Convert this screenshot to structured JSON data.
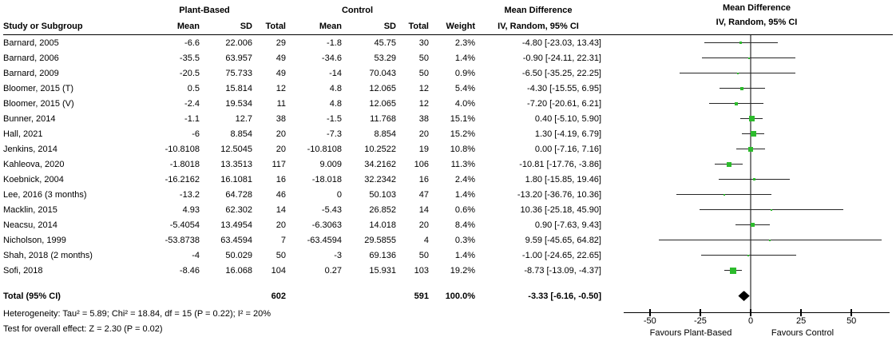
{
  "chart_data": {
    "type": "forest",
    "title_columns": {
      "study": "Study or Subgroup",
      "group1": "Plant-Based",
      "group2": "Control",
      "mean": "Mean",
      "sd": "SD",
      "total": "Total",
      "weight": "Weight",
      "effect_line1": "Mean Difference",
      "effect_line2": "IV, Random, 95% CI"
    },
    "studies": [
      {
        "name": "Barnard, 2005",
        "pb_mean": "-6.6",
        "pb_sd": "22.006",
        "pb_total": "29",
        "c_mean": "-1.8",
        "c_sd": "45.75",
        "c_total": "30",
        "weight": "2.3%",
        "ci": "-4.80 [-23.03, 13.43]",
        "md": -4.8,
        "lo": -23.03,
        "hi": 13.43
      },
      {
        "name": "Barnard, 2006",
        "pb_mean": "-35.5",
        "pb_sd": "63.957",
        "pb_total": "49",
        "c_mean": "-34.6",
        "c_sd": "53.29",
        "c_total": "50",
        "weight": "1.4%",
        "ci": "-0.90 [-24.11, 22.31]",
        "md": -0.9,
        "lo": -24.11,
        "hi": 22.31
      },
      {
        "name": "Barnard, 2009",
        "pb_mean": "-20.5",
        "pb_sd": "75.733",
        "pb_total": "49",
        "c_mean": "-14",
        "c_sd": "70.043",
        "c_total": "50",
        "weight": "0.9%",
        "ci": "-6.50 [-35.25, 22.25]",
        "md": -6.5,
        "lo": -35.25,
        "hi": 22.25
      },
      {
        "name": "Bloomer, 2015 (T)",
        "pb_mean": "0.5",
        "pb_sd": "15.814",
        "pb_total": "12",
        "c_mean": "4.8",
        "c_sd": "12.065",
        "c_total": "12",
        "weight": "5.4%",
        "ci": "-4.30 [-15.55, 6.95]",
        "md": -4.3,
        "lo": -15.55,
        "hi": 6.95
      },
      {
        "name": "Bloomer, 2015 (V)",
        "pb_mean": "-2.4",
        "pb_sd": "19.534",
        "pb_total": "11",
        "c_mean": "4.8",
        "c_sd": "12.065",
        "c_total": "12",
        "weight": "4.0%",
        "ci": "-7.20 [-20.61, 6.21]",
        "md": -7.2,
        "lo": -20.61,
        "hi": 6.21
      },
      {
        "name": "Bunner, 2014",
        "pb_mean": "-1.1",
        "pb_sd": "12.7",
        "pb_total": "38",
        "c_mean": "-1.5",
        "c_sd": "11.768",
        "c_total": "38",
        "weight": "15.1%",
        "ci": "0.40 [-5.10, 5.90]",
        "md": 0.4,
        "lo": -5.1,
        "hi": 5.9
      },
      {
        "name": "Hall, 2021",
        "pb_mean": "-6",
        "pb_sd": "8.854",
        "pb_total": "20",
        "c_mean": "-7.3",
        "c_sd": "8.854",
        "c_total": "20",
        "weight": "15.2%",
        "ci": "1.30 [-4.19, 6.79]",
        "md": 1.3,
        "lo": -4.19,
        "hi": 6.79
      },
      {
        "name": "Jenkins, 2014",
        "pb_mean": "-10.8108",
        "pb_sd": "12.5045",
        "pb_total": "20",
        "c_mean": "-10.8108",
        "c_sd": "10.2522",
        "c_total": "19",
        "weight": "10.8%",
        "ci": "0.00 [-7.16, 7.16]",
        "md": 0.0,
        "lo": -7.16,
        "hi": 7.16
      },
      {
        "name": "Kahleova, 2020",
        "pb_mean": "-1.8018",
        "pb_sd": "13.3513",
        "pb_total": "117",
        "c_mean": "9.009",
        "c_sd": "34.2162",
        "c_total": "106",
        "weight": "11.3%",
        "ci": "-10.81 [-17.76, -3.86]",
        "md": -10.81,
        "lo": -17.76,
        "hi": -3.86
      },
      {
        "name": "Koebnick, 2004",
        "pb_mean": "-16.2162",
        "pb_sd": "16.1081",
        "pb_total": "16",
        "c_mean": "-18.018",
        "c_sd": "32.2342",
        "c_total": "16",
        "weight": "2.4%",
        "ci": "1.80 [-15.85, 19.46]",
        "md": 1.8,
        "lo": -15.85,
        "hi": 19.46
      },
      {
        "name": "Lee, 2016 (3 months)",
        "pb_mean": "-13.2",
        "pb_sd": "64.728",
        "pb_total": "46",
        "c_mean": "0",
        "c_sd": "50.103",
        "c_total": "47",
        "weight": "1.4%",
        "ci": "-13.20 [-36.76, 10.36]",
        "md": -13.2,
        "lo": -36.76,
        "hi": 10.36
      },
      {
        "name": "Macklin, 2015",
        "pb_mean": "4.93",
        "pb_sd": "62.302",
        "pb_total": "14",
        "c_mean": "-5.43",
        "c_sd": "26.852",
        "c_total": "14",
        "weight": "0.6%",
        "ci": "10.36 [-25.18, 45.90]",
        "md": 10.36,
        "lo": -25.18,
        "hi": 45.9
      },
      {
        "name": "Neacsu, 2014",
        "pb_mean": "-5.4054",
        "pb_sd": "13.4954",
        "pb_total": "20",
        "c_mean": "-6.3063",
        "c_sd": "14.018",
        "c_total": "20",
        "weight": "8.4%",
        "ci": "0.90 [-7.63, 9.43]",
        "md": 0.9,
        "lo": -7.63,
        "hi": 9.43
      },
      {
        "name": "Nicholson, 1999",
        "pb_mean": "-53.8738",
        "pb_sd": "63.4594",
        "pb_total": "7",
        "c_mean": "-63.4594",
        "c_sd": "29.5855",
        "c_total": "4",
        "weight": "0.3%",
        "ci": "9.59 [-45.65, 64.82]",
        "md": 9.59,
        "lo": -45.65,
        "hi": 64.82
      },
      {
        "name": "Shah, 2018 (2 months)",
        "pb_mean": "-4",
        "pb_sd": "50.029",
        "pb_total": "50",
        "c_mean": "-3",
        "c_sd": "69.136",
        "c_total": "50",
        "weight": "1.4%",
        "ci": "-1.00 [-24.65, 22.65]",
        "md": -1.0,
        "lo": -24.65,
        "hi": 22.65
      },
      {
        "name": "Sofi, 2018",
        "pb_mean": "-8.46",
        "pb_sd": "16.068",
        "pb_total": "104",
        "c_mean": "0.27",
        "c_sd": "15.931",
        "c_total": "103",
        "weight": "19.2%",
        "ci": "-8.73 [-13.09, -4.37]",
        "md": -8.73,
        "lo": -13.09,
        "hi": -4.37
      }
    ],
    "total_row": {
      "label": "Total (95% CI)",
      "pb_total": "602",
      "c_total": "591",
      "weight": "100.0%",
      "ci": "-3.33 [-6.16, -0.50]",
      "md": -3.33,
      "lo": -6.16,
      "hi": -0.5
    },
    "axis": {
      "min": -63,
      "max": 69,
      "ticks": [
        -50,
        -25,
        0,
        25,
        50
      ],
      "zero": 0
    },
    "favours": {
      "left": "Favours Plant-Based",
      "right": "Favours Control"
    },
    "footnotes": [
      "Heterogeneity: Tau² = 5.89; Chi² = 18.84, df = 15 (P = 0.22); I² = 20%",
      "Test for overall effect: Z = 2.30 (P = 0.02)"
    ],
    "colors": {
      "marker": "#2CBB2C",
      "ci_line": "#262626",
      "zero_line": "#7f7f7f",
      "diamond": "#000000",
      "axis": "#000000"
    }
  }
}
